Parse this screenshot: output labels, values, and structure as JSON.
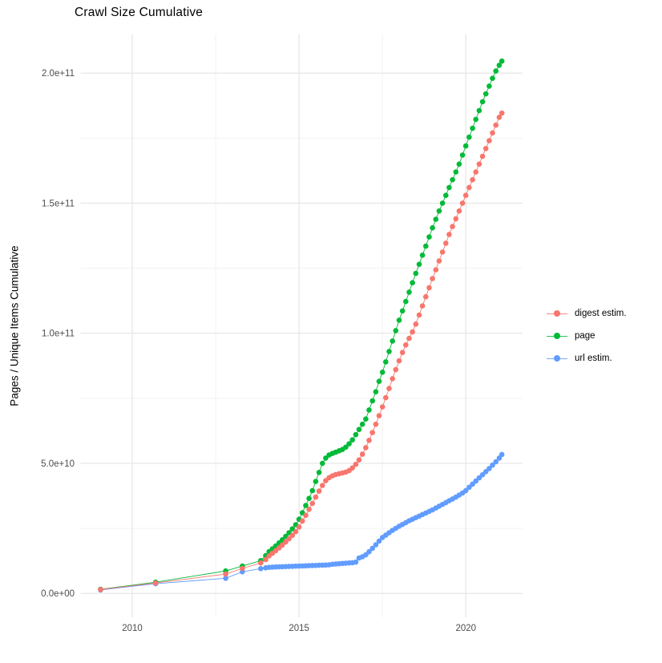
{
  "chart": {
    "title": "Crawl Size Cumulative",
    "ylabel": "Pages / Unique Items Cumulative",
    "xlabel": ""
  },
  "chart_data": {
    "type": "line",
    "title": "Crawl Size Cumulative",
    "xlabel": "",
    "ylabel": "Pages / Unique Items Cumulative",
    "legend_position": "right",
    "grid": true,
    "value_scale": 1000000000,
    "x_axis": {
      "range": [
        2008.45,
        2021.7
      ],
      "ticks": [
        2010,
        2015,
        2020
      ],
      "tick_labels": [
        "2010",
        "2015",
        "2020"
      ],
      "minor_ticks": [
        2012.5,
        2017.5
      ]
    },
    "y_axis": {
      "range_e9": [
        -9.2,
        215
      ],
      "ticks_e9": [
        0,
        50,
        100,
        150,
        200
      ],
      "tick_labels": [
        "0.0e+00",
        "5.0e+10",
        "1.0e+11",
        "1.5e+11",
        "2.0e+11"
      ],
      "minor_ticks_e9": [
        25,
        75,
        125,
        175
      ]
    },
    "series": [
      {
        "name": "digest estim.",
        "color": "#F8766D",
        "points": [
          [
            2009.05,
            1.5
          ],
          [
            2010.7,
            4.0
          ],
          [
            2012.8,
            7.4
          ],
          [
            2013.3,
            9.6
          ],
          [
            2013.85,
            11.7
          ],
          [
            2014.0,
            13.0
          ],
          [
            2014.1,
            14.4
          ],
          [
            2014.2,
            15.4
          ],
          [
            2014.3,
            16.4
          ],
          [
            2014.4,
            17.5
          ],
          [
            2014.5,
            18.6
          ],
          [
            2014.6,
            19.8
          ],
          [
            2014.7,
            21.0
          ],
          [
            2014.8,
            22.3
          ],
          [
            2014.9,
            23.7
          ],
          [
            2015.0,
            25.5
          ],
          [
            2015.1,
            27.8
          ],
          [
            2015.2,
            30.0
          ],
          [
            2015.3,
            32.3
          ],
          [
            2015.4,
            34.6
          ],
          [
            2015.5,
            37.0
          ],
          [
            2015.6,
            39.3
          ],
          [
            2015.7,
            41.5
          ],
          [
            2015.8,
            43.3
          ],
          [
            2015.9,
            44.5
          ],
          [
            2016.0,
            45.2
          ],
          [
            2016.1,
            45.7
          ],
          [
            2016.2,
            46.0
          ],
          [
            2016.3,
            46.3
          ],
          [
            2016.4,
            46.6
          ],
          [
            2016.5,
            47.2
          ],
          [
            2016.6,
            48.2
          ],
          [
            2016.7,
            49.6
          ],
          [
            2016.8,
            51.3
          ],
          [
            2016.9,
            53.5
          ],
          [
            2017.0,
            56.0
          ],
          [
            2017.1,
            58.8
          ],
          [
            2017.2,
            61.8
          ],
          [
            2017.3,
            65.0
          ],
          [
            2017.4,
            68.3
          ],
          [
            2017.5,
            71.7
          ],
          [
            2017.6,
            75.2
          ],
          [
            2017.7,
            78.8
          ],
          [
            2017.8,
            82.5
          ],
          [
            2017.9,
            86.0
          ],
          [
            2018.0,
            89.4
          ],
          [
            2018.1,
            92.6
          ],
          [
            2018.2,
            95.5
          ],
          [
            2018.3,
            98.0
          ],
          [
            2018.4,
            100.5
          ],
          [
            2018.5,
            103.5
          ],
          [
            2018.6,
            107.0
          ],
          [
            2018.7,
            110.5
          ],
          [
            2018.8,
            114.0
          ],
          [
            2018.9,
            117.5
          ],
          [
            2019.0,
            121.0
          ],
          [
            2019.1,
            124.4
          ],
          [
            2019.2,
            127.8
          ],
          [
            2019.3,
            131.2
          ],
          [
            2019.4,
            134.6
          ],
          [
            2019.5,
            138.0
          ],
          [
            2019.6,
            141.0
          ],
          [
            2019.7,
            144.0
          ],
          [
            2019.8,
            147.0
          ],
          [
            2019.9,
            150.0
          ],
          [
            2020.0,
            153.0
          ],
          [
            2020.1,
            156.0
          ],
          [
            2020.2,
            159.0
          ],
          [
            2020.3,
            162.0
          ],
          [
            2020.4,
            165.0
          ],
          [
            2020.5,
            168.0
          ],
          [
            2020.6,
            171.0
          ],
          [
            2020.7,
            174.0
          ],
          [
            2020.8,
            177.0
          ],
          [
            2020.9,
            180.0
          ],
          [
            2021.0,
            183.0
          ],
          [
            2021.08,
            184.6
          ]
        ]
      },
      {
        "name": "page",
        "color": "#00BA38",
        "points": [
          [
            2009.05,
            1.6
          ],
          [
            2010.7,
            4.3
          ],
          [
            2012.8,
            8.6
          ],
          [
            2013.3,
            10.5
          ],
          [
            2013.85,
            12.6
          ],
          [
            2014.0,
            14.5
          ],
          [
            2014.1,
            16.0
          ],
          [
            2014.2,
            17.1
          ],
          [
            2014.3,
            18.2
          ],
          [
            2014.4,
            19.4
          ],
          [
            2014.5,
            20.6
          ],
          [
            2014.6,
            21.9
          ],
          [
            2014.7,
            23.3
          ],
          [
            2014.8,
            24.8
          ],
          [
            2014.9,
            26.4
          ],
          [
            2015.0,
            28.5
          ],
          [
            2015.1,
            31.0
          ],
          [
            2015.2,
            33.8
          ],
          [
            2015.3,
            36.5
          ],
          [
            2015.4,
            39.5
          ],
          [
            2015.5,
            43.0
          ],
          [
            2015.6,
            46.5
          ],
          [
            2015.7,
            50.0
          ],
          [
            2015.8,
            52.0
          ],
          [
            2015.9,
            53.2
          ],
          [
            2016.0,
            53.8
          ],
          [
            2016.1,
            54.3
          ],
          [
            2016.2,
            54.8
          ],
          [
            2016.3,
            55.3
          ],
          [
            2016.4,
            56.2
          ],
          [
            2016.5,
            57.5
          ],
          [
            2016.6,
            59.0
          ],
          [
            2016.7,
            61.0
          ],
          [
            2016.8,
            63.0
          ],
          [
            2016.9,
            65.0
          ],
          [
            2017.0,
            67.0
          ],
          [
            2017.1,
            70.5
          ],
          [
            2017.2,
            74.0
          ],
          [
            2017.3,
            77.5
          ],
          [
            2017.4,
            81.5
          ],
          [
            2017.5,
            85.0
          ],
          [
            2017.6,
            89.0
          ],
          [
            2017.7,
            93.0
          ],
          [
            2017.8,
            97.0
          ],
          [
            2017.9,
            101.0
          ],
          [
            2018.0,
            105.0
          ],
          [
            2018.1,
            108.6
          ],
          [
            2018.2,
            112.2
          ],
          [
            2018.3,
            115.8
          ],
          [
            2018.4,
            119.4
          ],
          [
            2018.5,
            123.0
          ],
          [
            2018.6,
            126.5
          ],
          [
            2018.7,
            130.0
          ],
          [
            2018.8,
            133.5
          ],
          [
            2018.9,
            137.0
          ],
          [
            2019.0,
            140.5
          ],
          [
            2019.1,
            143.8
          ],
          [
            2019.2,
            147.0
          ],
          [
            2019.3,
            150.0
          ],
          [
            2019.4,
            153.0
          ],
          [
            2019.5,
            156.0
          ],
          [
            2019.6,
            159.0
          ],
          [
            2019.7,
            162.0
          ],
          [
            2019.8,
            165.0
          ],
          [
            2019.9,
            168.5
          ],
          [
            2020.0,
            172.0
          ],
          [
            2020.1,
            175.4
          ],
          [
            2020.2,
            178.8
          ],
          [
            2020.3,
            182.2
          ],
          [
            2020.4,
            185.6
          ],
          [
            2020.5,
            189.0
          ],
          [
            2020.6,
            192.0
          ],
          [
            2020.7,
            195.0
          ],
          [
            2020.8,
            198.0
          ],
          [
            2020.9,
            200.8
          ],
          [
            2021.0,
            203.0
          ],
          [
            2021.08,
            204.6
          ]
        ]
      },
      {
        "name": "url estim.",
        "color": "#619CFF",
        "points": [
          [
            2009.05,
            1.3
          ],
          [
            2010.7,
            3.7
          ],
          [
            2012.8,
            5.8
          ],
          [
            2013.3,
            8.3
          ],
          [
            2013.85,
            9.5
          ],
          [
            2014.0,
            9.8
          ],
          [
            2014.1,
            10.0
          ],
          [
            2014.2,
            10.1
          ],
          [
            2014.3,
            10.15
          ],
          [
            2014.4,
            10.2
          ],
          [
            2014.5,
            10.25
          ],
          [
            2014.6,
            10.3
          ],
          [
            2014.7,
            10.35
          ],
          [
            2014.8,
            10.4
          ],
          [
            2014.9,
            10.45
          ],
          [
            2015.0,
            10.5
          ],
          [
            2015.1,
            10.55
          ],
          [
            2015.2,
            10.6
          ],
          [
            2015.3,
            10.65
          ],
          [
            2015.4,
            10.7
          ],
          [
            2015.5,
            10.75
          ],
          [
            2015.6,
            10.8
          ],
          [
            2015.7,
            10.85
          ],
          [
            2015.8,
            10.9
          ],
          [
            2015.9,
            11.0
          ],
          [
            2016.0,
            11.2
          ],
          [
            2016.1,
            11.3
          ],
          [
            2016.2,
            11.4
          ],
          [
            2016.3,
            11.5
          ],
          [
            2016.4,
            11.6
          ],
          [
            2016.5,
            11.7
          ],
          [
            2016.6,
            11.8
          ],
          [
            2016.7,
            12.0
          ],
          [
            2016.8,
            13.6
          ],
          [
            2016.9,
            14.1
          ],
          [
            2017.0,
            14.8
          ],
          [
            2017.1,
            16.0
          ],
          [
            2017.2,
            17.3
          ],
          [
            2017.3,
            18.7
          ],
          [
            2017.4,
            20.1
          ],
          [
            2017.5,
            21.5
          ],
          [
            2017.6,
            22.4
          ],
          [
            2017.7,
            23.3
          ],
          [
            2017.8,
            24.2
          ],
          [
            2017.9,
            25.0
          ],
          [
            2018.0,
            25.8
          ],
          [
            2018.1,
            26.5
          ],
          [
            2018.2,
            27.2
          ],
          [
            2018.3,
            27.9
          ],
          [
            2018.4,
            28.5
          ],
          [
            2018.5,
            29.1
          ],
          [
            2018.6,
            29.7
          ],
          [
            2018.7,
            30.3
          ],
          [
            2018.8,
            30.9
          ],
          [
            2018.9,
            31.5
          ],
          [
            2019.0,
            32.1
          ],
          [
            2019.1,
            32.8
          ],
          [
            2019.2,
            33.5
          ],
          [
            2019.3,
            34.2
          ],
          [
            2019.4,
            34.9
          ],
          [
            2019.5,
            35.6
          ],
          [
            2019.6,
            36.3
          ],
          [
            2019.7,
            37.0
          ],
          [
            2019.8,
            37.8
          ],
          [
            2019.9,
            38.6
          ],
          [
            2020.0,
            39.5
          ],
          [
            2020.1,
            40.8
          ],
          [
            2020.2,
            42.0
          ],
          [
            2020.3,
            43.2
          ],
          [
            2020.4,
            44.4
          ],
          [
            2020.5,
            45.6
          ],
          [
            2020.6,
            46.8
          ],
          [
            2020.7,
            48.0
          ],
          [
            2020.8,
            49.3
          ],
          [
            2020.9,
            50.6
          ],
          [
            2021.0,
            52.0
          ],
          [
            2021.08,
            53.4
          ]
        ]
      }
    ]
  },
  "style": {
    "grid_major_color": "#E4E4E4",
    "grid_minor_color": "#F0F0F0",
    "tick_label_color": "#4D4D4D",
    "background": "#FFFFFF"
  }
}
